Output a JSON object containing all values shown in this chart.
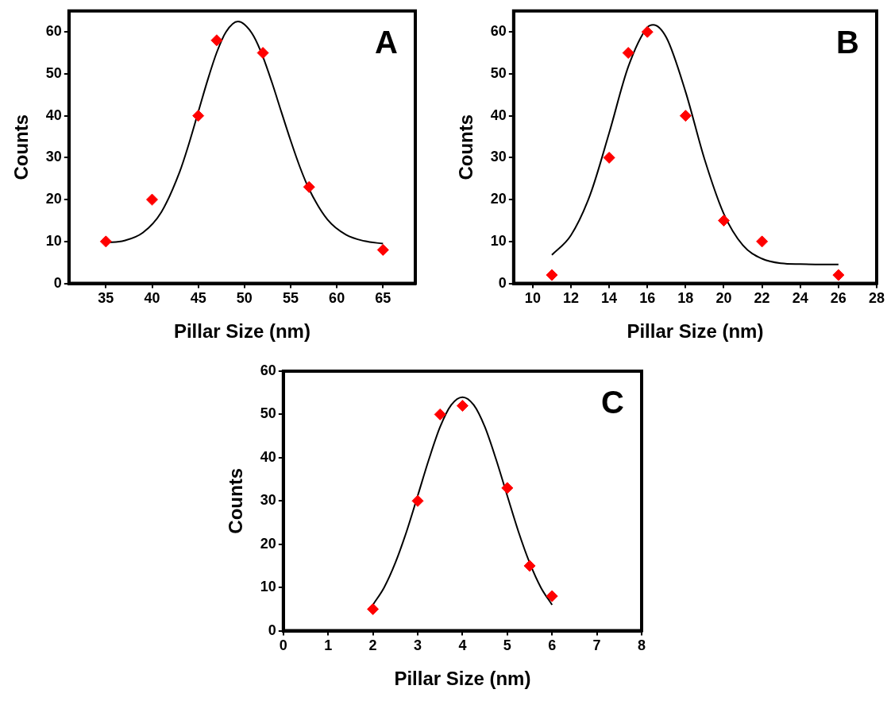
{
  "chart_data": [
    {
      "type": "scatter",
      "xlabel": "Pillar Size (nm)",
      "ylabel": "Counts",
      "annotations": [
        "A"
      ],
      "xlim": [
        31,
        68.5
      ],
      "xticks": [
        35,
        40,
        45,
        50,
        55,
        60,
        65
      ],
      "ylim": [
        0,
        65
      ],
      "yticks": [
        0,
        10,
        20,
        30,
        40,
        50,
        60
      ],
      "grid": false,
      "legend": false,
      "marker": "diamond",
      "series": [
        {
          "type": "scatter",
          "color": "#ff0000",
          "x": [
            35,
            40,
            45,
            47,
            52,
            57,
            65
          ],
          "values": [
            10,
            20,
            40,
            58,
            55,
            23,
            8
          ]
        },
        {
          "type": "line",
          "color": "#000000",
          "marker": "none",
          "x": [
            35,
            37,
            39,
            41,
            43,
            44,
            45,
            46,
            47,
            48,
            49.3,
            50,
            51,
            52,
            53,
            54,
            55,
            56,
            57,
            59,
            61,
            63,
            65
          ],
          "values": [
            9.7,
            10.2,
            12.1,
            17.0,
            26.7,
            33.4,
            40.9,
            48.4,
            55.1,
            60.0,
            62.5,
            61.8,
            59.0,
            54.1,
            47.8,
            40.9,
            34.1,
            27.8,
            22.5,
            15.2,
            11.6,
            10.1,
            9.5
          ]
        }
      ]
    },
    {
      "type": "scatter",
      "xlabel": "Pillar Size (nm)",
      "ylabel": "Counts",
      "annotations": [
        "B"
      ],
      "xlim": [
        9,
        28
      ],
      "xticks": [
        10,
        12,
        14,
        16,
        18,
        20,
        22,
        24,
        26,
        28
      ],
      "ylim": [
        0,
        65
      ],
      "yticks": [
        0,
        10,
        20,
        30,
        40,
        50,
        60
      ],
      "grid": false,
      "legend": false,
      "marker": "diamond",
      "series": [
        {
          "type": "scatter",
          "color": "#ff0000",
          "x": [
            11,
            14,
            15,
            16,
            18,
            20,
            22,
            26
          ],
          "values": [
            2,
            30,
            55,
            60,
            40,
            15,
            10,
            2
          ]
        },
        {
          "type": "line",
          "color": "#000000",
          "marker": "none",
          "x": [
            11,
            12,
            13,
            14,
            15,
            16,
            16.3,
            17,
            18,
            19,
            20,
            21,
            22,
            23,
            24,
            26
          ],
          "values": [
            6.8,
            11.5,
            21.1,
            35.9,
            51.7,
            61.1,
            61.7,
            58.6,
            45.7,
            29.5,
            16.6,
            9.1,
            5.9,
            4.8,
            4.6,
            4.5
          ]
        }
      ]
    },
    {
      "type": "scatter",
      "xlabel": "Pillar Size (nm)",
      "ylabel": "Counts",
      "annotations": [
        "C"
      ],
      "xlim": [
        0,
        8
      ],
      "xticks": [
        0,
        1,
        2,
        3,
        4,
        5,
        6,
        7,
        8
      ],
      "ylim": [
        0,
        60
      ],
      "yticks": [
        0,
        10,
        20,
        30,
        40,
        50,
        60
      ],
      "grid": false,
      "legend": false,
      "marker": "diamond",
      "series": [
        {
          "type": "scatter",
          "color": "#ff0000",
          "x": [
            2,
            3,
            3.5,
            4,
            5,
            5.5,
            6
          ],
          "values": [
            5,
            30,
            50,
            52,
            33,
            15,
            8
          ]
        },
        {
          "type": "line",
          "color": "#000000",
          "marker": "none",
          "x": [
            2,
            2.25,
            2.5,
            2.75,
            3,
            3.25,
            3.5,
            3.75,
            4,
            4.25,
            4.5,
            4.75,
            5,
            5.25,
            5.5,
            5.75,
            6
          ],
          "values": [
            6.0,
            10.0,
            15.7,
            22.9,
            31.2,
            39.6,
            47.1,
            52.2,
            54,
            52.2,
            47.1,
            39.6,
            31.2,
            22.9,
            15.7,
            10.0,
            6.0
          ]
        }
      ]
    }
  ]
}
